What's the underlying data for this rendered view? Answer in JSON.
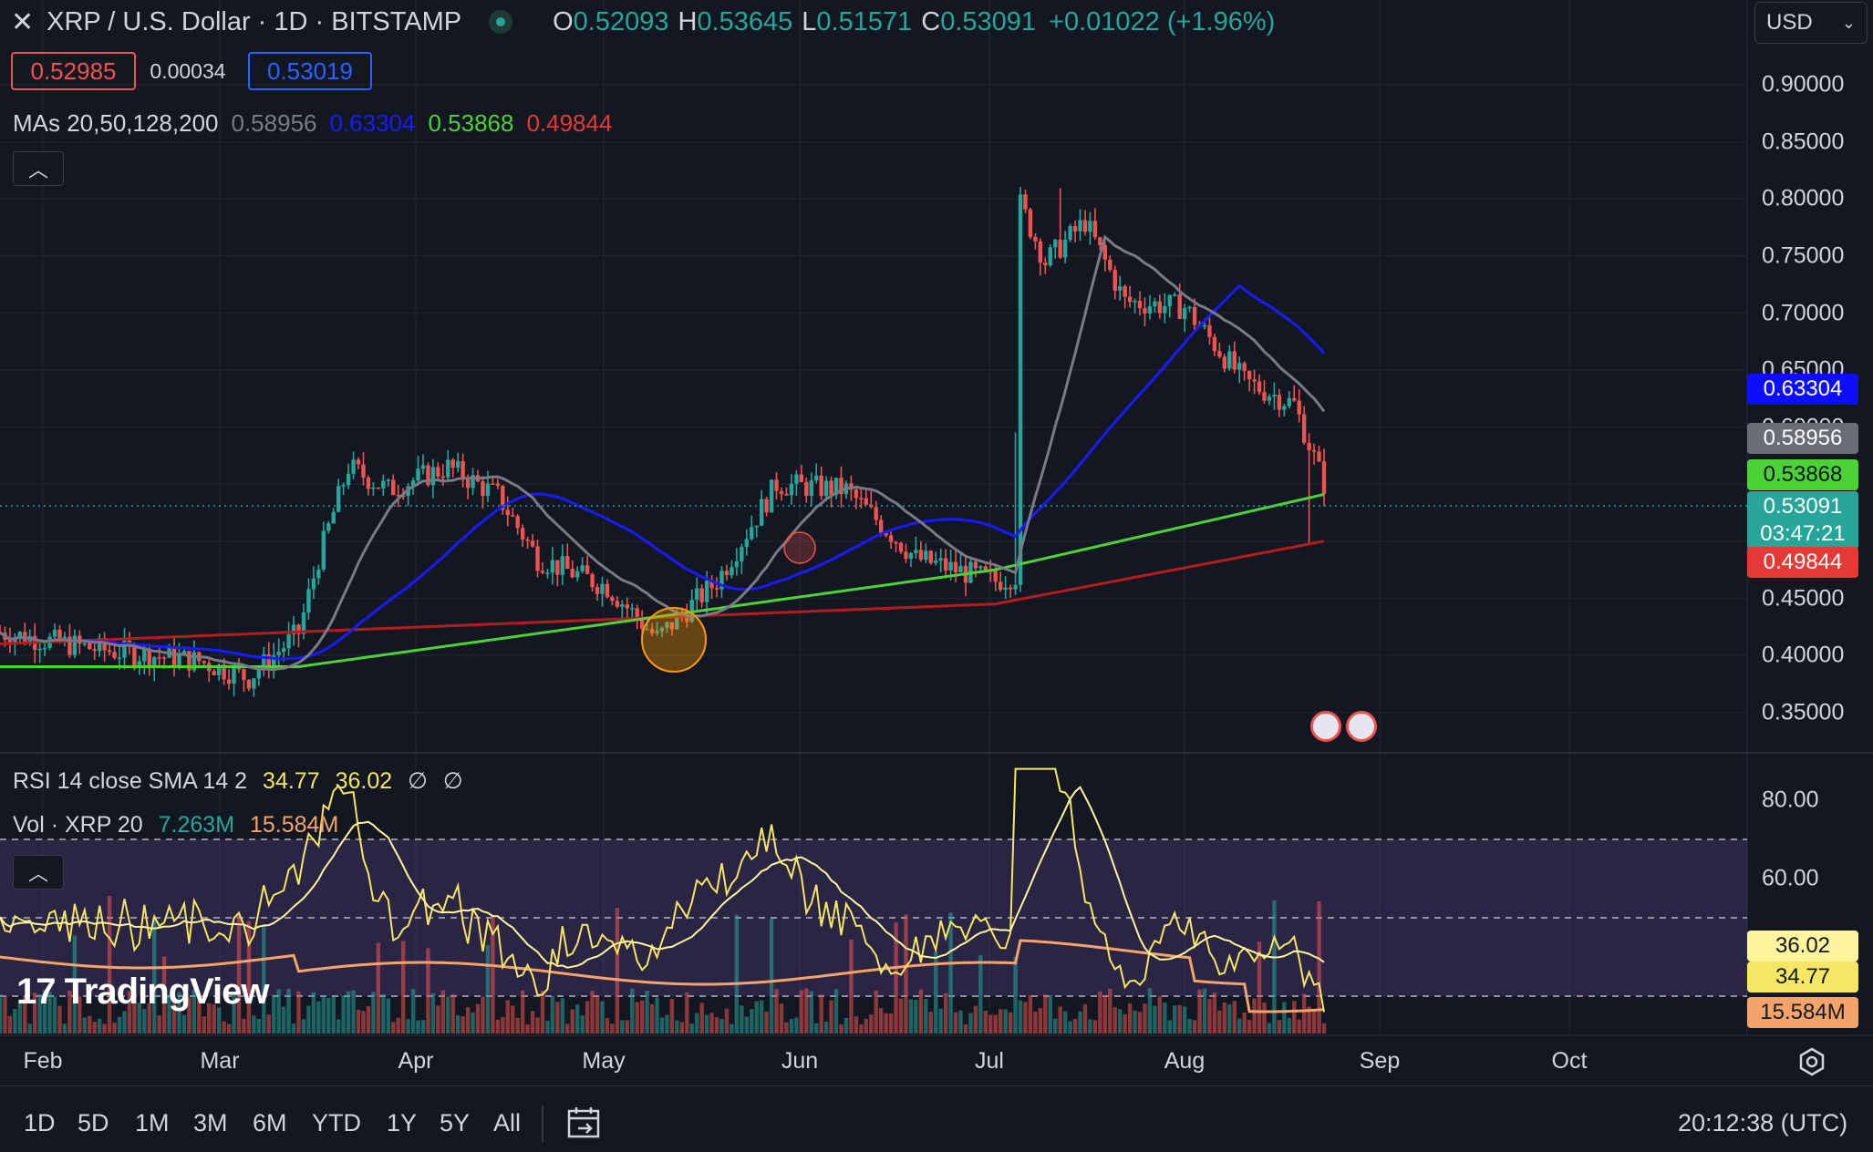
{
  "header": {
    "close_icon": "close-icon",
    "symbol": "XRP / U.S. Dollar · 1D · BITSTAMP",
    "open_key": "O",
    "open": "0.52093",
    "high_key": "H",
    "high": "0.53645",
    "low_key": "L",
    "low": "0.51571",
    "close_key": "C",
    "close": "0.53091",
    "change": "+0.01022 (+1.96%)"
  },
  "trade": {
    "sell": "0.52985",
    "spread": "0.00034",
    "buy": "0.53019"
  },
  "ma_legend": {
    "label": "MAs 20,50,128,200",
    "values": [
      "0.58956",
      "0.63304",
      "0.53868",
      "0.49844"
    ],
    "colors": [
      "#787b86",
      "#1a1aff",
      "#4cd137",
      "#e53935"
    ]
  },
  "currency": "USD",
  "price_axis": [
    "0.90000",
    "0.85000",
    "0.80000",
    "0.75000",
    "0.70000",
    "0.65000",
    "0.60000",
    "0.45000",
    "0.40000",
    "0.35000"
  ],
  "price_labels": {
    "ma50": "0.63304",
    "ma20": "0.58956",
    "ma128": "0.53868",
    "last": "0.53091",
    "countdown": "03:47:21",
    "ma200": "0.49844"
  },
  "rsi_legend": {
    "label": "RSI 14 close SMA 14 2",
    "rsi": "34.77",
    "sma": "36.02",
    "na1": "∅",
    "na2": "∅"
  },
  "vol_legend": {
    "label": "Vol · XRP 20",
    "vol": "7.263M",
    "ma": "15.584M"
  },
  "rsi_axis": [
    "80.00",
    "60.00"
  ],
  "rsi_labels": {
    "sma": "36.02",
    "rsi": "34.77",
    "volma": "15.584M"
  },
  "time_axis": [
    "Feb",
    "Mar",
    "Apr",
    "May",
    "Jun",
    "Jul",
    "Aug",
    "Sep",
    "Oct"
  ],
  "timeframes": [
    "1D",
    "5D",
    "1M",
    "3M",
    "6M",
    "YTD",
    "1Y",
    "5Y",
    "All"
  ],
  "clock": "20:12:38 (UTC)",
  "watermark": "TradingView",
  "colors": {
    "up": "#26a69a",
    "down": "#ef5350",
    "bg": "#131722"
  }
}
